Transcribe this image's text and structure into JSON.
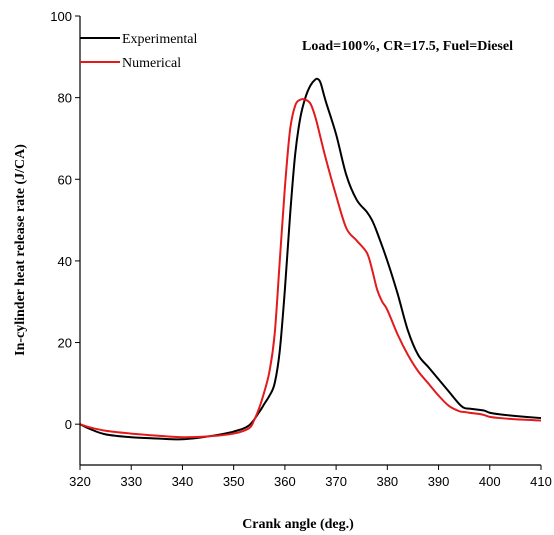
{
  "chart_data": {
    "type": "line",
    "title": "",
    "annotation": "Load=100%, CR=17.5, Fuel=Diesel",
    "xlabel": "Crank angle (deg.)",
    "ylabel": "In-cylinder heat release rate (J/CA)",
    "xlim": [
      320,
      410
    ],
    "ylim": [
      -10,
      100
    ],
    "xticks": [
      "320",
      "330",
      "340",
      "350",
      "360",
      "370",
      "380",
      "390",
      "400",
      "410"
    ],
    "yticks": [
      "0",
      "20",
      "40",
      "60",
      "80",
      "100"
    ],
    "grid": false,
    "legend_position": "top-left",
    "series": [
      {
        "name": "Experimental",
        "color": "#000000",
        "x": [
          320,
          322,
          325,
          330,
          335,
          340,
          345,
          350,
          353,
          355,
          356,
          357,
          358,
          359,
          360,
          361,
          362,
          363,
          364,
          365,
          366,
          366.5,
          367,
          368,
          370,
          372,
          374,
          376,
          377,
          378,
          380,
          382,
          384,
          386,
          388,
          390,
          392,
          394,
          395,
          396,
          398,
          399,
          400,
          402,
          405,
          410
        ],
        "y": [
          0,
          -1.2,
          -2.5,
          -3.2,
          -3.5,
          -3.7,
          -3.0,
          -1.8,
          -0.3,
          3,
          5,
          7,
          10,
          18,
          33,
          51,
          66,
          75,
          80,
          83,
          84.5,
          84.5,
          83.5,
          79,
          71,
          61,
          55,
          52,
          50,
          47,
          40,
          32,
          23,
          17,
          14,
          11,
          8,
          5,
          4,
          3.8,
          3.5,
          3.3,
          2.8,
          2.4,
          2,
          1.5
        ]
      },
      {
        "name": "Numerical",
        "color": "#e31a1c",
        "x": [
          320,
          322,
          325,
          330,
          335,
          340,
          345,
          350,
          353,
          354,
          355,
          356,
          357,
          358,
          359,
          360,
          361,
          362,
          363,
          364,
          365,
          366,
          367,
          368,
          370,
          372,
          374,
          376,
          377,
          378,
          379,
          380,
          382,
          384,
          386,
          388,
          390,
          392,
          394,
          395,
          396,
          398,
          399,
          400,
          402,
          405,
          410
        ],
        "y": [
          0,
          -0.8,
          -1.6,
          -2.3,
          -2.8,
          -3.2,
          -3.0,
          -2.3,
          -1.0,
          1,
          4,
          8,
          13,
          22,
          40,
          58,
          72,
          78,
          79.5,
          79.5,
          78.5,
          75,
          70,
          65,
          56,
          48,
          45,
          42,
          38,
          33,
          30,
          28,
          22,
          17,
          13,
          10,
          7,
          4.5,
          3.2,
          3.0,
          2.8,
          2.5,
          2.2,
          1.8,
          1.5,
          1.2,
          0.9
        ]
      }
    ]
  }
}
